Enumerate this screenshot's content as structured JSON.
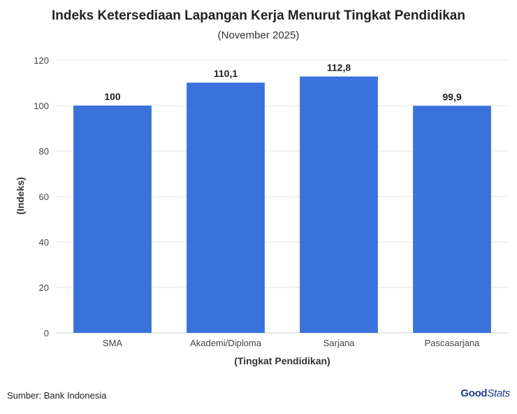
{
  "chart_data": {
    "type": "bar",
    "title": "Indeks Ketersediaan Lapangan Kerja Menurut Tingkat Pendidikan",
    "subtitle": "(November 2025)",
    "categories": [
      "SMA",
      "Akademi/Diploma",
      "Sarjana",
      "Pascasarjana"
    ],
    "values": [
      100,
      110.1,
      112.8,
      99.9
    ],
    "value_labels": [
      "100",
      "110,1",
      "112,8",
      "99,9"
    ],
    "xlabel": "(Tingkat Pendidikan)",
    "ylabel": "(Indeks)",
    "ylim": [
      0,
      120
    ],
    "yticks": [
      0,
      20,
      40,
      60,
      80,
      100,
      120
    ],
    "grid": true,
    "bar_color": "#3a72dc"
  },
  "footer": {
    "source": "Sumber: Bank Indonesia",
    "logo_good": "Good",
    "logo_stats": "Stats"
  }
}
